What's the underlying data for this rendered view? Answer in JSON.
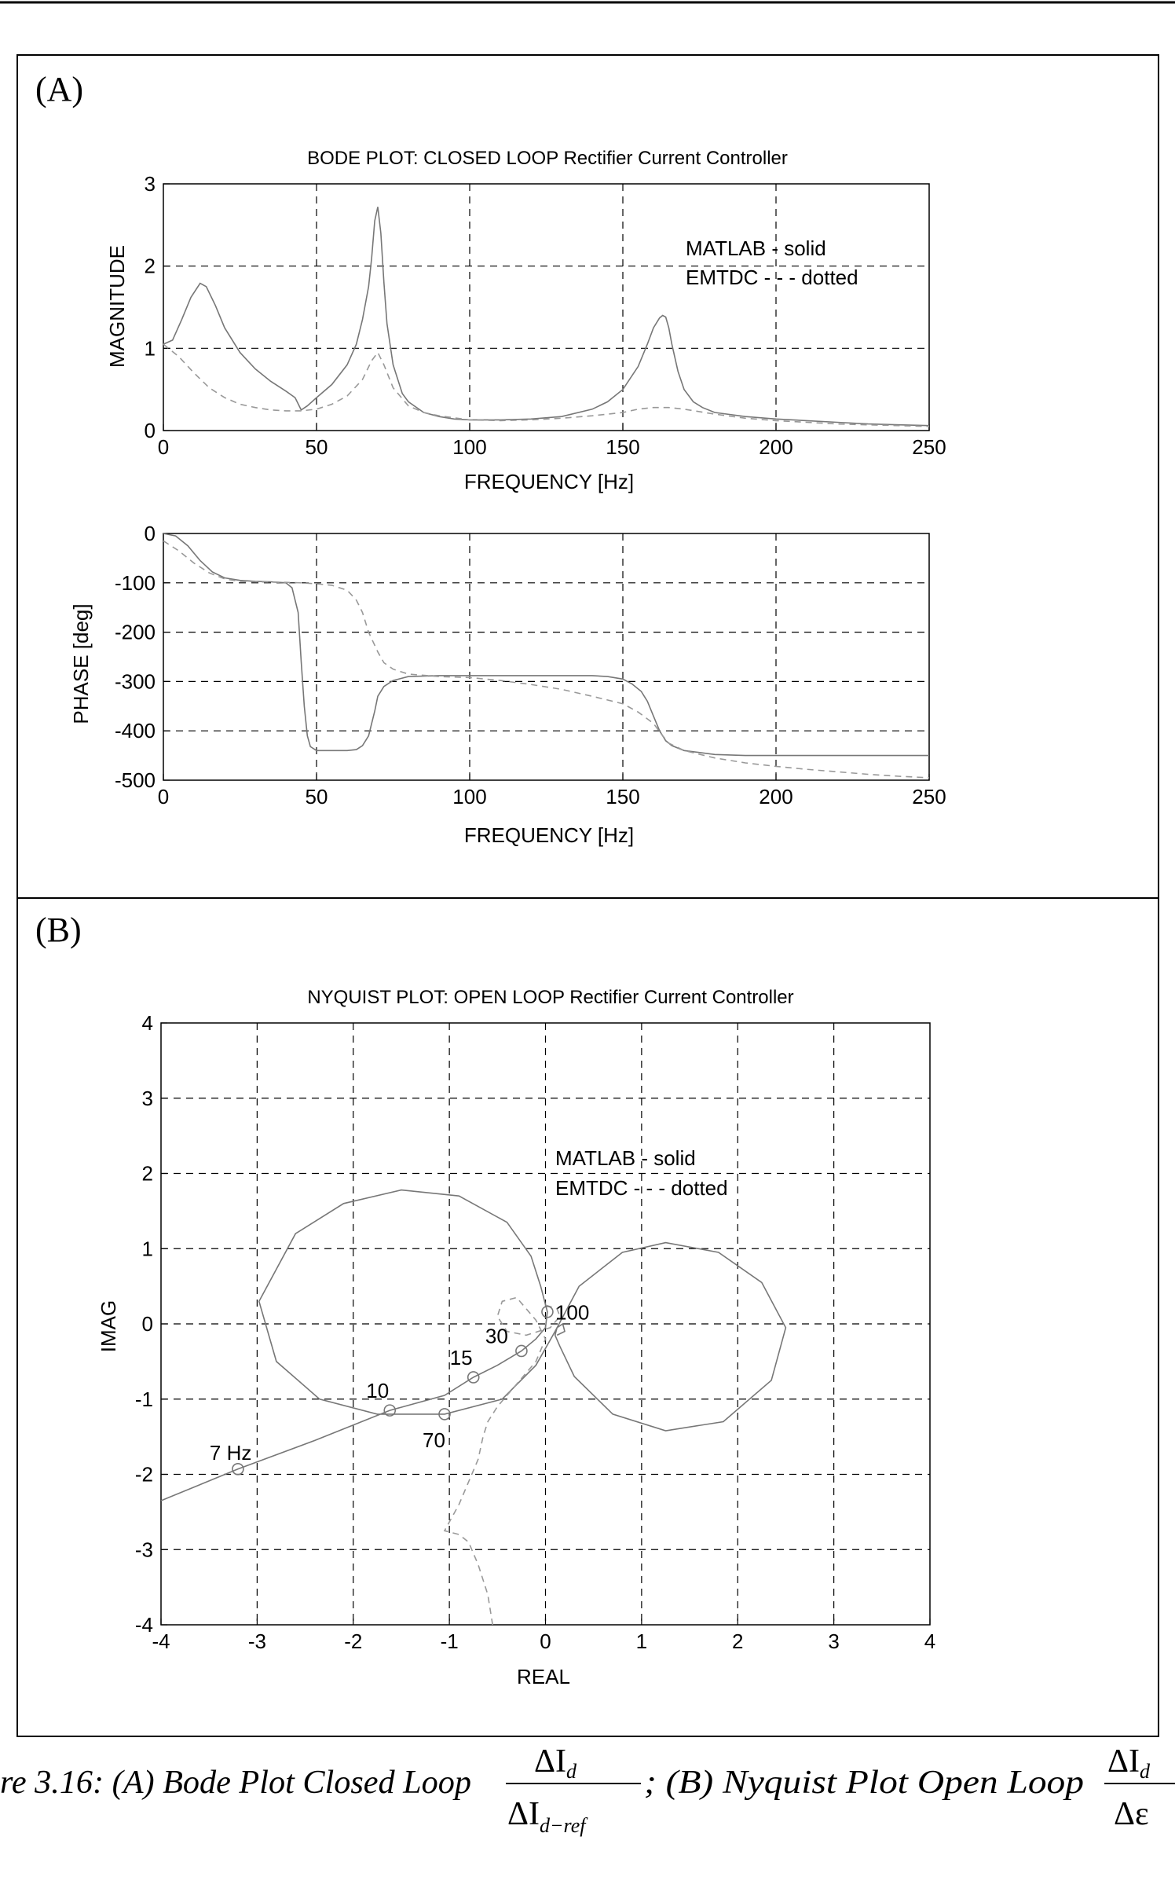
{
  "panel_a": {
    "tag": "(A)",
    "bode_magnitude": {
      "title": "BODE PLOT: CLOSED LOOP Rectifier Current Controller",
      "xlabel": "FREQUENCY [Hz]",
      "ylabel": "MAGNITUDE",
      "legend": [
        "MATLAB  -  solid",
        "EMTDC - - - dotted"
      ],
      "x_ticks": [
        "0",
        "50",
        "100",
        "150",
        "200",
        "250"
      ],
      "y_ticks": [
        "0",
        "1",
        "2",
        "3"
      ]
    },
    "bode_phase": {
      "xlabel": "FREQUENCY [Hz]",
      "ylabel": "PHASE [deg]",
      "x_ticks": [
        "0",
        "50",
        "100",
        "150",
        "200",
        "250"
      ],
      "y_ticks": [
        "0",
        "-100",
        "-200",
        "-300",
        "-400",
        "-500"
      ]
    }
  },
  "panel_b": {
    "tag": "(B)",
    "nyquist": {
      "title": "NYQUIST PLOT: OPEN LOOP Rectifier Current Controller",
      "xlabel": "REAL",
      "ylabel": "IMAG",
      "legend": [
        "MATLAB  -  solid",
        "EMTDC - - - dotted"
      ],
      "x_ticks": [
        "-4",
        "-3",
        "-2",
        "-1",
        "0",
        "1",
        "2",
        "3",
        "4"
      ],
      "y_ticks": [
        "4",
        "3",
        "2",
        "1",
        "0",
        "-1",
        "-2",
        "-3",
        "-4"
      ],
      "annotations": [
        {
          "text": "7 Hz",
          "x": -3.2,
          "y": -1.93
        },
        {
          "text": "10",
          "x": -1.62,
          "y": -1.15
        },
        {
          "text": "15",
          "x": -0.75,
          "y": -0.71
        },
        {
          "text": "30",
          "x": -0.25,
          "y": -0.36
        },
        {
          "text": "70",
          "x": -1.05,
          "y": -1.2
        },
        {
          "text": "100",
          "x": 0.02,
          "y": 0.16
        }
      ]
    }
  },
  "caption": {
    "prefix": "re 3.16:  (A) Bode Plot Closed Loop",
    "frac1_num": "ΔI",
    "frac1_num_sub": "d",
    "frac1_den": "ΔI",
    "frac1_den_sub": "d−ref",
    "middle": "; (B) Nyquist Plot Open Loop",
    "frac2_num": "ΔI",
    "frac2_num_sub": "d",
    "frac2_den": "Δε"
  },
  "chart_data": [
    {
      "type": "line",
      "title": "BODE PLOT: CLOSED LOOP Rectifier Current Controller",
      "xlabel": "FREQUENCY [Hz]",
      "ylabel": "MAGNITUDE",
      "xlim": [
        0,
        250
      ],
      "ylim": [
        0,
        3
      ],
      "grid": true,
      "legend": "top-right",
      "series": [
        {
          "name": "MATLAB",
          "style": "solid",
          "x": [
            0,
            3,
            6,
            9,
            12,
            14,
            17,
            20,
            25,
            30,
            35,
            40,
            43,
            45,
            47,
            50,
            55,
            60,
            63,
            65,
            67,
            68,
            69,
            70,
            71,
            72,
            73,
            75,
            78,
            80,
            85,
            90,
            95,
            100,
            110,
            120,
            130,
            140,
            145,
            150,
            155,
            158,
            160,
            162,
            163,
            164,
            165,
            166,
            168,
            170,
            173,
            176,
            180,
            190,
            200,
            210,
            220,
            230,
            240,
            250
          ],
          "y": [
            1.05,
            1.1,
            1.35,
            1.62,
            1.79,
            1.75,
            1.52,
            1.25,
            0.95,
            0.75,
            0.6,
            0.48,
            0.4,
            0.25,
            0.3,
            0.4,
            0.56,
            0.8,
            1.05,
            1.35,
            1.75,
            2.1,
            2.55,
            2.72,
            2.4,
            1.8,
            1.3,
            0.8,
            0.45,
            0.35,
            0.22,
            0.17,
            0.14,
            0.13,
            0.13,
            0.14,
            0.17,
            0.26,
            0.35,
            0.5,
            0.78,
            1.05,
            1.25,
            1.37,
            1.4,
            1.38,
            1.25,
            1.05,
            0.72,
            0.5,
            0.35,
            0.28,
            0.22,
            0.17,
            0.14,
            0.12,
            0.1,
            0.08,
            0.07,
            0.06
          ]
        },
        {
          "name": "EMTDC",
          "style": "dashed",
          "x": [
            0,
            5,
            10,
            15,
            20,
            25,
            30,
            35,
            40,
            45,
            50,
            55,
            60,
            65,
            68,
            70,
            72,
            75,
            80,
            85,
            90,
            100,
            110,
            120,
            130,
            140,
            150,
            155,
            160,
            165,
            170,
            180,
            190,
            200,
            210,
            220,
            230,
            240,
            250
          ],
          "y": [
            1.05,
            0.9,
            0.7,
            0.52,
            0.4,
            0.32,
            0.28,
            0.25,
            0.24,
            0.24,
            0.26,
            0.32,
            0.42,
            0.62,
            0.85,
            0.95,
            0.8,
            0.52,
            0.3,
            0.22,
            0.18,
            0.13,
            0.12,
            0.13,
            0.15,
            0.18,
            0.22,
            0.26,
            0.28,
            0.28,
            0.26,
            0.2,
            0.15,
            0.12,
            0.1,
            0.08,
            0.07,
            0.06,
            0.05
          ]
        }
      ]
    },
    {
      "type": "line",
      "xlabel": "FREQUENCY [Hz]",
      "ylabel": "PHASE [deg]",
      "xlim": [
        0,
        250
      ],
      "ylim": [
        -500,
        0
      ],
      "grid": true,
      "series": [
        {
          "name": "MATLAB",
          "style": "solid",
          "x": [
            0,
            4,
            8,
            12,
            16,
            20,
            25,
            30,
            35,
            40,
            42,
            44,
            45,
            46,
            47,
            48,
            50,
            55,
            60,
            63,
            65,
            67,
            69,
            70,
            72,
            75,
            80,
            90,
            100,
            110,
            120,
            130,
            140,
            145,
            150,
            153,
            156,
            158,
            160,
            162,
            164,
            166,
            170,
            180,
            190,
            200,
            210,
            220,
            230,
            240,
            250
          ],
          "y": [
            0,
            -5,
            -25,
            -55,
            -78,
            -90,
            -95,
            -97,
            -98,
            -100,
            -110,
            -160,
            -260,
            -350,
            -410,
            -432,
            -440,
            -440,
            -440,
            -438,
            -430,
            -410,
            -360,
            -330,
            -310,
            -298,
            -290,
            -288,
            -288,
            -288,
            -288,
            -288,
            -288,
            -290,
            -295,
            -305,
            -320,
            -340,
            -370,
            -400,
            -420,
            -430,
            -440,
            -448,
            -450,
            -450,
            -450,
            -450,
            -450,
            -450,
            -450
          ]
        },
        {
          "name": "EMTDC",
          "style": "dashed",
          "x": [
            0,
            5,
            10,
            15,
            20,
            25,
            30,
            40,
            45,
            50,
            55,
            60,
            63,
            65,
            67,
            70,
            72,
            75,
            80,
            90,
            100,
            110,
            120,
            130,
            140,
            150,
            155,
            160,
            163,
            165,
            170,
            180,
            190,
            200,
            210,
            220,
            230,
            240,
            250
          ],
          "y": [
            -15,
            -35,
            -60,
            -80,
            -92,
            -97,
            -98,
            -99,
            -100,
            -102,
            -105,
            -115,
            -135,
            -160,
            -200,
            -240,
            -262,
            -275,
            -285,
            -290,
            -292,
            -298,
            -306,
            -316,
            -330,
            -345,
            -362,
            -385,
            -410,
            -425,
            -440,
            -455,
            -465,
            -472,
            -478,
            -483,
            -488,
            -492,
            -495
          ]
        }
      ]
    },
    {
      "type": "line",
      "title": "NYQUIST PLOT: OPEN LOOP Rectifier Current Controller",
      "xlabel": "REAL",
      "ylabel": "IMAG",
      "xlim": [
        -4,
        4
      ],
      "ylim": [
        -4,
        4
      ],
      "grid": true,
      "legend": "top-right",
      "series": [
        {
          "name": "MATLAB",
          "style": "solid",
          "x": [
            -4.0,
            -3.2,
            -2.4,
            -1.62,
            -1.05,
            -0.75,
            -0.5,
            -0.25,
            -0.1,
            0.0,
            0.02,
            -0.05,
            -0.15,
            -0.4,
            -0.9,
            -1.5,
            -2.1,
            -2.6,
            -2.98,
            -2.8,
            -2.35,
            -1.75,
            -1.05,
            -0.45,
            -0.1,
            0.1,
            0.35,
            0.8,
            1.25,
            1.8,
            2.25,
            2.5,
            2.35,
            1.85,
            1.25,
            0.7,
            0.3,
            0.15,
            0.1,
            0.12,
            0.18,
            0.2,
            0.12
          ],
          "y": [
            -2.35,
            -1.93,
            -1.55,
            -1.15,
            -0.95,
            -0.71,
            -0.55,
            -0.36,
            -0.2,
            -0.05,
            0.16,
            0.5,
            0.9,
            1.35,
            1.7,
            1.78,
            1.6,
            1.2,
            0.3,
            -0.5,
            -1.0,
            -1.2,
            -1.2,
            -1.0,
            -0.55,
            -0.1,
            0.5,
            0.95,
            1.08,
            0.95,
            0.55,
            -0.05,
            -0.75,
            -1.3,
            -1.42,
            -1.2,
            -0.7,
            -0.3,
            -0.15,
            -0.05,
            0.0,
            -0.1,
            -0.15
          ]
        },
        {
          "name": "EMTDC",
          "style": "dashed",
          "x": [
            -0.55,
            -0.6,
            -0.7,
            -0.8,
            -0.9,
            -1.05,
            -0.9,
            -0.8,
            -0.7,
            -0.65,
            -0.6,
            -0.5,
            -0.3,
            -0.1,
            0.0,
            -0.1,
            -0.3,
            -0.45,
            -0.5,
            -0.4,
            -0.2,
            0.05,
            0.15,
            0.12,
            0.0
          ],
          "y": [
            -4.0,
            -3.6,
            -3.2,
            -2.9,
            -2.8,
            -2.75,
            -2.4,
            -2.1,
            -1.8,
            -1.5,
            -1.3,
            -1.1,
            -0.8,
            -0.5,
            -0.2,
            0.05,
            0.35,
            0.3,
            0.1,
            -0.1,
            -0.15,
            -0.05,
            0.1,
            0.2,
            0.25
          ]
        }
      ]
    }
  ]
}
